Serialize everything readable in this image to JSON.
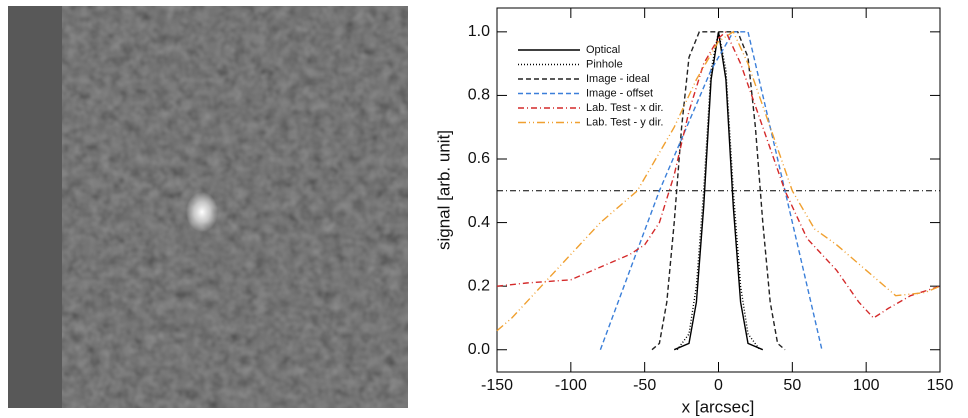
{
  "chart_data": {
    "type": "line",
    "xlabel": "x  [arcsec]",
    "ylabel": "signal [arb. unit]",
    "xlim": [
      -150,
      150
    ],
    "xticks": [
      -150,
      -100,
      -50,
      0,
      50,
      100,
      150
    ],
    "ylim": [
      -0.07,
      1.075
    ],
    "yticks": [
      {
        "value": 0,
        "label": "0.0"
      },
      0.2,
      0.4,
      0.6,
      0.8,
      {
        "value": 1,
        "label": "1.0"
      }
    ],
    "hline": 0.5,
    "series": [
      {
        "name": "Optical",
        "color": "#000000",
        "dash": "solid",
        "x": [
          -30,
          -20,
          -15,
          -10,
          -5,
          0,
          5,
          10,
          15,
          20,
          30
        ],
        "values": [
          0,
          0.02,
          0.15,
          0.45,
          0.85,
          1,
          0.85,
          0.45,
          0.15,
          0.02,
          0
        ]
      },
      {
        "name": "Pinhole",
        "color": "#000000",
        "dash": "dotted",
        "x": [
          -28,
          -20,
          -15,
          -10,
          -5,
          0,
          5,
          10,
          15,
          20,
          28
        ],
        "values": [
          0,
          0.05,
          0.2,
          0.5,
          0.88,
          1,
          0.88,
          0.5,
          0.2,
          0.05,
          0
        ]
      },
      {
        "name": "Image - ideal",
        "color": "#222222",
        "dash": "dashed",
        "x": [
          -45,
          -40,
          -35,
          -30,
          -25,
          -20,
          -13,
          13,
          20,
          25,
          30,
          35,
          40,
          45
        ],
        "values": [
          0,
          0.02,
          0.15,
          0.4,
          0.7,
          0.92,
          1,
          1,
          0.92,
          0.7,
          0.4,
          0.15,
          0.02,
          0
        ]
      },
      {
        "name": "Image - offset",
        "color": "#3b7fd9",
        "dash": "dashed",
        "x": [
          -80,
          -40,
          -5,
          10,
          20,
          45,
          70
        ],
        "values": [
          0,
          0.5,
          0.88,
          1,
          1,
          0.5,
          0
        ]
      },
      {
        "name": "Lab. Test - x dir.",
        "color": "#d42a2a",
        "dash": "dashdot",
        "x": [
          -150,
          -130,
          -100,
          -75,
          -60,
          -50,
          -40,
          -30,
          -20,
          -10,
          0,
          5,
          15,
          30,
          45,
          60,
          80,
          95,
          105,
          115,
          130,
          150
        ],
        "values": [
          0.2,
          0.21,
          0.22,
          0.27,
          0.3,
          0.33,
          0.4,
          0.55,
          0.75,
          0.9,
          0.98,
          1,
          0.9,
          0.7,
          0.5,
          0.35,
          0.25,
          0.15,
          0.1,
          0.13,
          0.17,
          0.2
        ]
      },
      {
        "name": "Lab. Test - y dir.",
        "color": "#f0a030",
        "dash": "dashdotdot",
        "x": [
          -150,
          -140,
          -120,
          -100,
          -80,
          -55,
          -30,
          -15,
          0,
          10,
          20,
          35,
          50,
          65,
          80,
          100,
          120,
          140,
          150
        ],
        "values": [
          0.06,
          0.1,
          0.2,
          0.3,
          0.4,
          0.5,
          0.7,
          0.85,
          0.97,
          1,
          0.9,
          0.7,
          0.5,
          0.38,
          0.33,
          0.25,
          0.17,
          0.18,
          0.2
        ]
      }
    ]
  }
}
